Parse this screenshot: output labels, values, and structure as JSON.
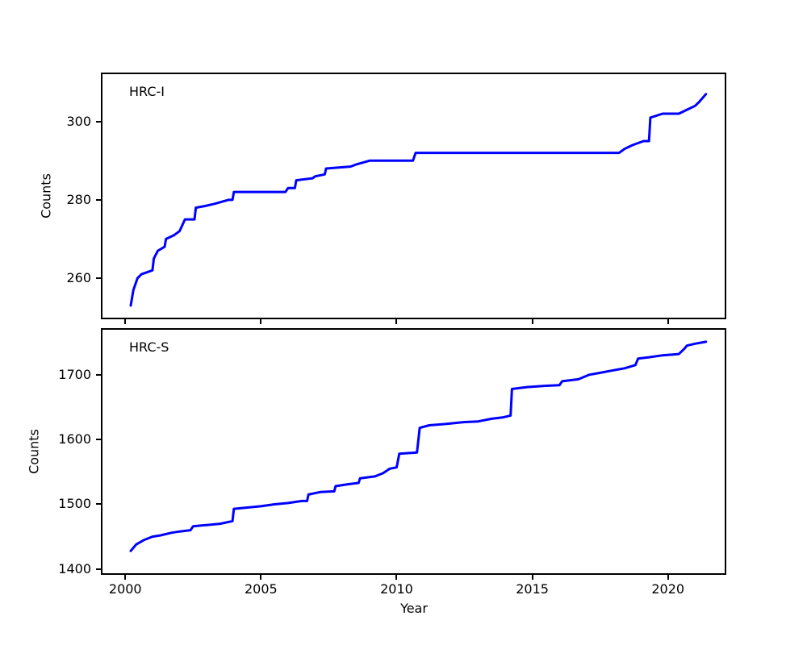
{
  "figure": {
    "background": "#ffffff",
    "axis_color": "#000000",
    "line_color": "#0000ff",
    "xlabel": "Year"
  },
  "chart_data": [
    {
      "type": "line",
      "title": "HRC-I",
      "ylabel": "Counts",
      "xlabel": "",
      "grid": false,
      "legend_position": "none",
      "xlim": [
        1999.1,
        2022.15
      ],
      "ylim": [
        249.5,
        312.5
      ],
      "xticks": [
        2000,
        2005,
        2010,
        2015,
        2020
      ],
      "xtick_labels": [],
      "yticks": [
        260,
        280,
        300
      ],
      "ytick_labels": [
        "260",
        "280",
        "300"
      ],
      "x": [
        2000.2,
        2000.3,
        2000.45,
        2000.6,
        2000.8,
        2001.0,
        2001.05,
        2001.2,
        2001.45,
        2001.5,
        2001.8,
        2002.0,
        2002.2,
        2002.55,
        2002.6,
        2003.0,
        2003.3,
        2003.8,
        2003.95,
        2004.0,
        2005.9,
        2006.0,
        2006.25,
        2006.3,
        2006.9,
        2007.0,
        2007.35,
        2007.4,
        2008.3,
        2008.5,
        2009.0,
        2010.6,
        2010.7,
        2018.2,
        2018.4,
        2018.7,
        2019.1,
        2019.3,
        2019.35,
        2019.8,
        2020.4,
        2020.7,
        2021.0,
        2021.15,
        2021.4
      ],
      "y": [
        253,
        257,
        260,
        261,
        261.5,
        262,
        265,
        267,
        268,
        270,
        271,
        272,
        275,
        275,
        278,
        278.5,
        279,
        280,
        280,
        282,
        282,
        283,
        283,
        285,
        285.5,
        286,
        286.5,
        288,
        288.5,
        289,
        290,
        290,
        292,
        292,
        293,
        294,
        295,
        295,
        301,
        302,
        302,
        303,
        304,
        305,
        307
      ]
    },
    {
      "type": "line",
      "title": "HRC-S",
      "ylabel": "Counts",
      "xlabel": "Year",
      "grid": false,
      "legend_position": "none",
      "xlim": [
        1999.1,
        2022.15
      ],
      "ylim": [
        1391,
        1772
      ],
      "xticks": [
        2000,
        2005,
        2010,
        2015,
        2020
      ],
      "xtick_labels": [
        "2000",
        "2005",
        "2010",
        "2015",
        "2020"
      ],
      "yticks": [
        1400,
        1500,
        1600,
        1700
      ],
      "ytick_labels": [
        "1400",
        "1500",
        "1600",
        "1700"
      ],
      "x": [
        2000.2,
        2000.4,
        2000.7,
        2001.0,
        2001.3,
        2001.7,
        2002.0,
        2002.4,
        2002.5,
        2003.0,
        2003.5,
        2003.95,
        2004.0,
        2004.5,
        2005.0,
        2005.5,
        2006.0,
        2006.5,
        2006.7,
        2006.75,
        2007.2,
        2007.7,
        2007.75,
        2008.2,
        2008.6,
        2008.65,
        2009.2,
        2009.5,
        2009.75,
        2010.0,
        2010.1,
        2010.75,
        2010.85,
        2011.2,
        2011.8,
        2012.5,
        2013.0,
        2013.5,
        2013.9,
        2014.2,
        2014.25,
        2014.8,
        2015.5,
        2016.0,
        2016.1,
        2016.7,
        2017.1,
        2017.5,
        2018.0,
        2018.4,
        2018.8,
        2018.9,
        2019.3,
        2019.8,
        2020.4,
        2020.6,
        2020.7,
        2021.0,
        2021.4
      ],
      "y": [
        1428,
        1438,
        1445,
        1450,
        1452,
        1456,
        1458,
        1460,
        1466,
        1468,
        1470,
        1474,
        1493,
        1495,
        1497,
        1500,
        1502,
        1505,
        1505,
        1515,
        1519,
        1520,
        1528,
        1531,
        1533,
        1540,
        1543,
        1548,
        1555,
        1557,
        1578,
        1580,
        1618,
        1622,
        1624,
        1627,
        1628,
        1632,
        1634,
        1637,
        1678,
        1681,
        1683,
        1684,
        1690,
        1693,
        1700,
        1703,
        1707,
        1710,
        1715,
        1725,
        1727,
        1730,
        1732,
        1740,
        1745,
        1748,
        1751
      ]
    }
  ]
}
